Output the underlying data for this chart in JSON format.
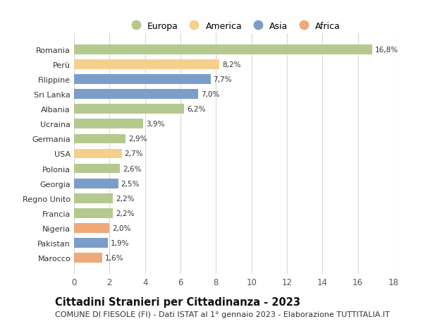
{
  "countries": [
    "Romania",
    "Perù",
    "Filippine",
    "Sri Lanka",
    "Albania",
    "Ucraina",
    "Germania",
    "USA",
    "Polonia",
    "Georgia",
    "Regno Unito",
    "Francia",
    "Nigeria",
    "Pakistan",
    "Marocco"
  ],
  "values": [
    16.8,
    8.2,
    7.7,
    7.0,
    6.2,
    3.9,
    2.9,
    2.7,
    2.6,
    2.5,
    2.2,
    2.2,
    2.0,
    1.9,
    1.6
  ],
  "labels": [
    "16,8%",
    "8,2%",
    "7,7%",
    "7,0%",
    "6,2%",
    "3,9%",
    "2,9%",
    "2,7%",
    "2,6%",
    "2,5%",
    "2,2%",
    "2,2%",
    "2,0%",
    "1,9%",
    "1,6%"
  ],
  "continents": [
    "Europa",
    "America",
    "Asia",
    "Asia",
    "Europa",
    "Europa",
    "Europa",
    "America",
    "Europa",
    "Asia",
    "Europa",
    "Europa",
    "Africa",
    "Asia",
    "Africa"
  ],
  "continent_colors": {
    "Europa": "#b5c98e",
    "America": "#f5d08c",
    "Asia": "#7b9ec9",
    "Africa": "#f0a878"
  },
  "legend_order": [
    "Europa",
    "America",
    "Asia",
    "Africa"
  ],
  "xlim": [
    0,
    18
  ],
  "xticks": [
    0,
    2,
    4,
    6,
    8,
    10,
    12,
    14,
    16,
    18
  ],
  "title": "Cittadini Stranieri per Cittadinanza - 2023",
  "subtitle": "COMUNE DI FIESOLE (FI) - Dati ISTAT al 1° gennaio 2023 - Elaborazione TUTTITALIA.IT",
  "title_fontsize": 10.5,
  "subtitle_fontsize": 8.0,
  "background_color": "#ffffff",
  "grid_color": "#d8d8d8",
  "bar_height": 0.65
}
